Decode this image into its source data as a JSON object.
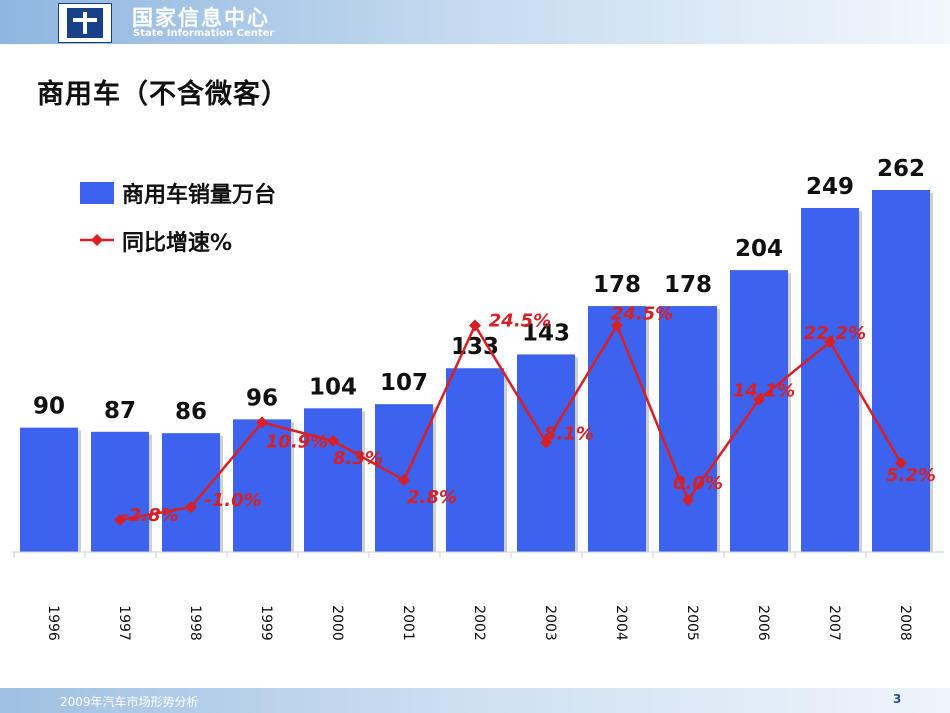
{
  "header": {
    "org_name_cn": "国家信息中心",
    "org_name_en": "State Information Center"
  },
  "slide_title": "商用车（不含微客）",
  "footer": {
    "text": "2009年汽车市场形势分析",
    "page_number": "3"
  },
  "colors": {
    "bar": "#3d63ee",
    "line": "#d71f26",
    "growth_label": "#d71f26"
  },
  "chart_data": {
    "type": "bar",
    "categories": [
      "1996",
      "1997",
      "1998",
      "1999",
      "2000",
      "2001",
      "2002",
      "2003",
      "2004",
      "2005",
      "2006",
      "2007",
      "2008"
    ],
    "series": [
      {
        "name": "商用车销量万台",
        "type": "bar",
        "values": [
          90,
          87,
          86,
          96,
          104,
          107,
          133,
          143,
          178,
          178,
          204,
          249,
          262
        ]
      },
      {
        "name": "同比增速%",
        "type": "line",
        "values": [
          null,
          -2.8,
          -1.0,
          10.9,
          8.3,
          2.8,
          24.5,
          8.1,
          24.5,
          0.0,
          14.1,
          22.2,
          5.2
        ]
      }
    ],
    "bar_labels": [
      "90",
      "87",
      "86",
      "96",
      "104",
      "107",
      "133",
      "143",
      "178",
      "178",
      "204",
      "249",
      "262"
    ],
    "growth_labels": [
      "",
      "-2.8%",
      "-1.0%",
      "10.9%",
      "8.3%",
      "2.8%",
      "24.5%",
      "8.1%",
      "24.5%",
      "0.0%",
      "14.1%",
      "22.2%",
      "5.2%"
    ],
    "legend_position": "top-left",
    "grid": false
  }
}
